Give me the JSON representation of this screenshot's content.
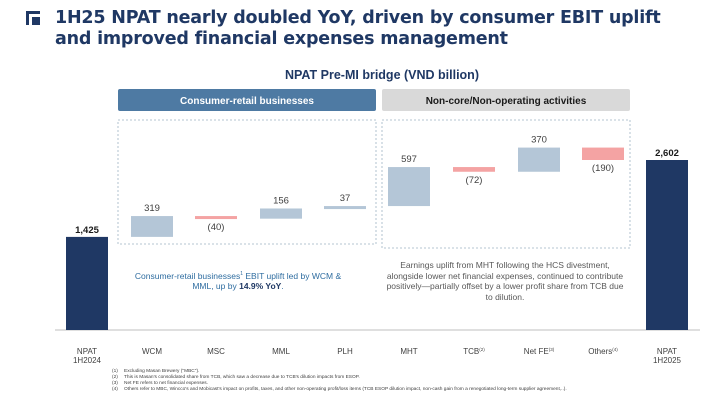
{
  "header": {
    "title": "1H25 NPAT nearly doubled YoY, driven by consumer EBIT uplift and improved financial expenses management"
  },
  "sections": {
    "left": "Consumer-retail businesses",
    "right": "Non-core/Non-operating activities"
  },
  "notes": {
    "left_part1": "Consumer-retail businesses",
    "left_sup": "1",
    "left_part2": " EBIT uplift led by WCM & MML, up by ",
    "left_highlight": "14.9% YoY",
    "left_end": ".",
    "right": "Earnings uplift from MHT following the HCS divestment, alongside lower net financial expenses, continued to contribute positively—partially offset by a lower profit share from TCB due to dilution."
  },
  "chart_data": {
    "type": "waterfall",
    "title": "NPAT Pre-MI bridge (VND billion)",
    "colors": {
      "total": "#1f3864",
      "positive": "#b4c6d7",
      "negative": "#f4a3a3",
      "left_header": "#4e7aa3",
      "right_header": "#d9d9d9"
    },
    "bars": [
      {
        "key": "npat24",
        "label": [
          "NPAT",
          "1H2024"
        ],
        "kind": "total",
        "value": 1425,
        "display": "1,425",
        "sup": ""
      },
      {
        "key": "wcm",
        "label": [
          "WCM"
        ],
        "kind": "delta",
        "value": 319,
        "display": "319",
        "sup": ""
      },
      {
        "key": "msc",
        "label": [
          "MSC"
        ],
        "kind": "delta",
        "value": -40,
        "display": "(40)",
        "sup": ""
      },
      {
        "key": "mml",
        "label": [
          "MML"
        ],
        "kind": "delta",
        "value": 156,
        "display": "156",
        "sup": ""
      },
      {
        "key": "plh",
        "label": [
          "PLH"
        ],
        "kind": "delta",
        "value": 37,
        "display": "37",
        "sup": ""
      },
      {
        "key": "mht",
        "label": [
          "MHT"
        ],
        "kind": "delta",
        "value": 597,
        "display": "597",
        "sup": ""
      },
      {
        "key": "tcb",
        "label": [
          "TCB"
        ],
        "kind": "delta",
        "value": -72,
        "display": "(72)",
        "sup": "(2)"
      },
      {
        "key": "netfe",
        "label": [
          "Net FE"
        ],
        "kind": "delta",
        "value": 370,
        "display": "370",
        "sup": "(3)"
      },
      {
        "key": "others",
        "label": [
          "Others"
        ],
        "kind": "delta",
        "value": -190,
        "display": "(190)",
        "sup": "(4)"
      },
      {
        "key": "npat25",
        "label": [
          "NPAT",
          "1H2025"
        ],
        "kind": "total",
        "value": 2602,
        "display": "2,602",
        "sup": ""
      }
    ]
  },
  "footnotes": [
    {
      "num": "(1)",
      "text": "Excluding Masan Brewery (\"MBC\")."
    },
    {
      "num": "(2)",
      "text": "This is Masan's consolidated share from TCB, which saw a decrease due to TCB's dilution impacts from ESOP."
    },
    {
      "num": "(3)",
      "text": "Net FE refers to net financial expenses."
    },
    {
      "num": "(4)",
      "text": "Others refer to MBC, Wincco's and Mobicast's impact on profits, taxes, and other non-operating profit/loss items (TCB ESOP dilution impact, non-cash gain from a renegotiated long-term supplier agreement,..)."
    }
  ]
}
